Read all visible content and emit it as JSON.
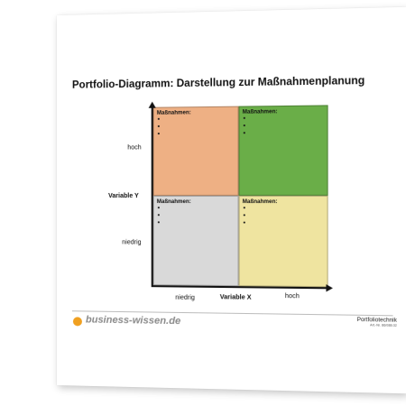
{
  "document": {
    "title": "Portfolio-Diagramm: Darstellung zur Maßnahmenplanung"
  },
  "diagram": {
    "y_axis": {
      "title": "Variable Y",
      "high": "hoch",
      "low": "niedrig"
    },
    "x_axis": {
      "title": "Variable X",
      "low": "niedrig",
      "high": "hoch"
    },
    "quadrants": [
      {
        "id": "top-left",
        "label": "Maßnahmen:",
        "bullets": 3,
        "color": "#eeb084"
      },
      {
        "id": "top-right",
        "label": "Maßnahmen:",
        "bullets": 3,
        "color": "#6aae48"
      },
      {
        "id": "bottom-left",
        "label": "Maßnahmen:",
        "bullets": 3,
        "color": "#d9d9d9"
      },
      {
        "id": "bottom-right",
        "label": "Maßnahmen:",
        "bullets": 3,
        "color": "#efe4a0"
      }
    ]
  },
  "footer": {
    "logo_text": "business-wissen.de",
    "logo_color": "#f0a020",
    "topic": "Portfoliotechnik",
    "article_number": "Art.-Nr. 86/088.02"
  }
}
